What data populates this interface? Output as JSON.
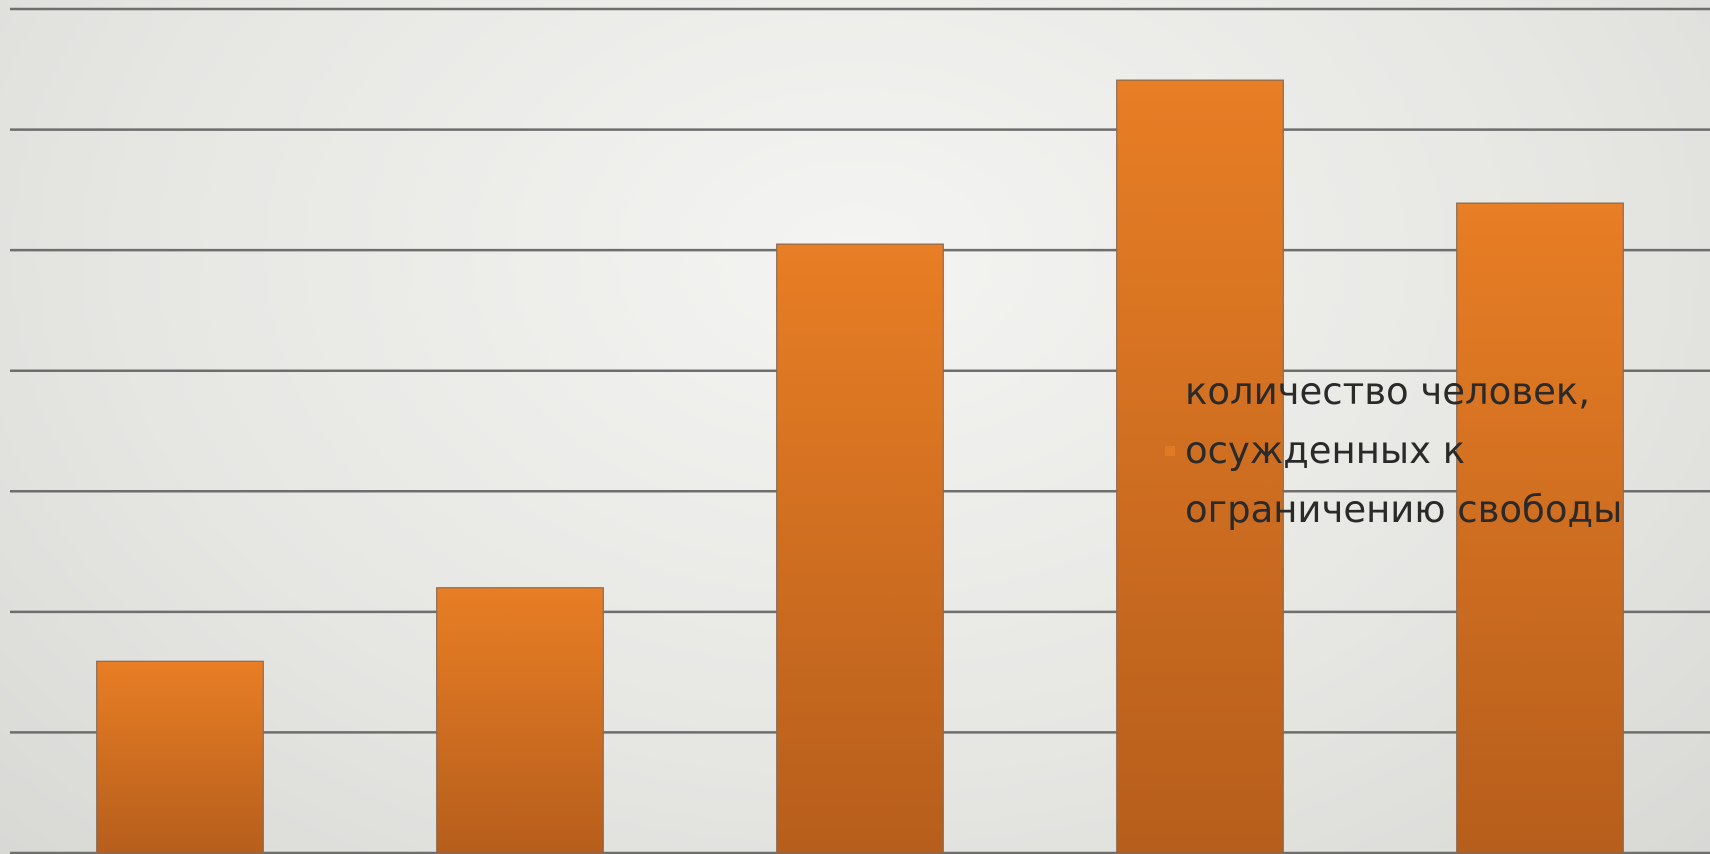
{
  "chart_data": {
    "type": "bar",
    "categories": [
      null,
      null,
      null,
      null,
      null
    ],
    "series": [
      {
        "name": "количество человек, осужденных к ограничению свободы",
        "color": "#e07a24",
        "values": [
          1.59,
          2.2,
          5.05,
          6.41,
          5.39
        ]
      }
    ],
    "ylim": [
      0,
      7
    ],
    "yticks": [
      0,
      1,
      2,
      3,
      4,
      5,
      6,
      7
    ],
    "grid": true,
    "legend": "right"
  }
}
